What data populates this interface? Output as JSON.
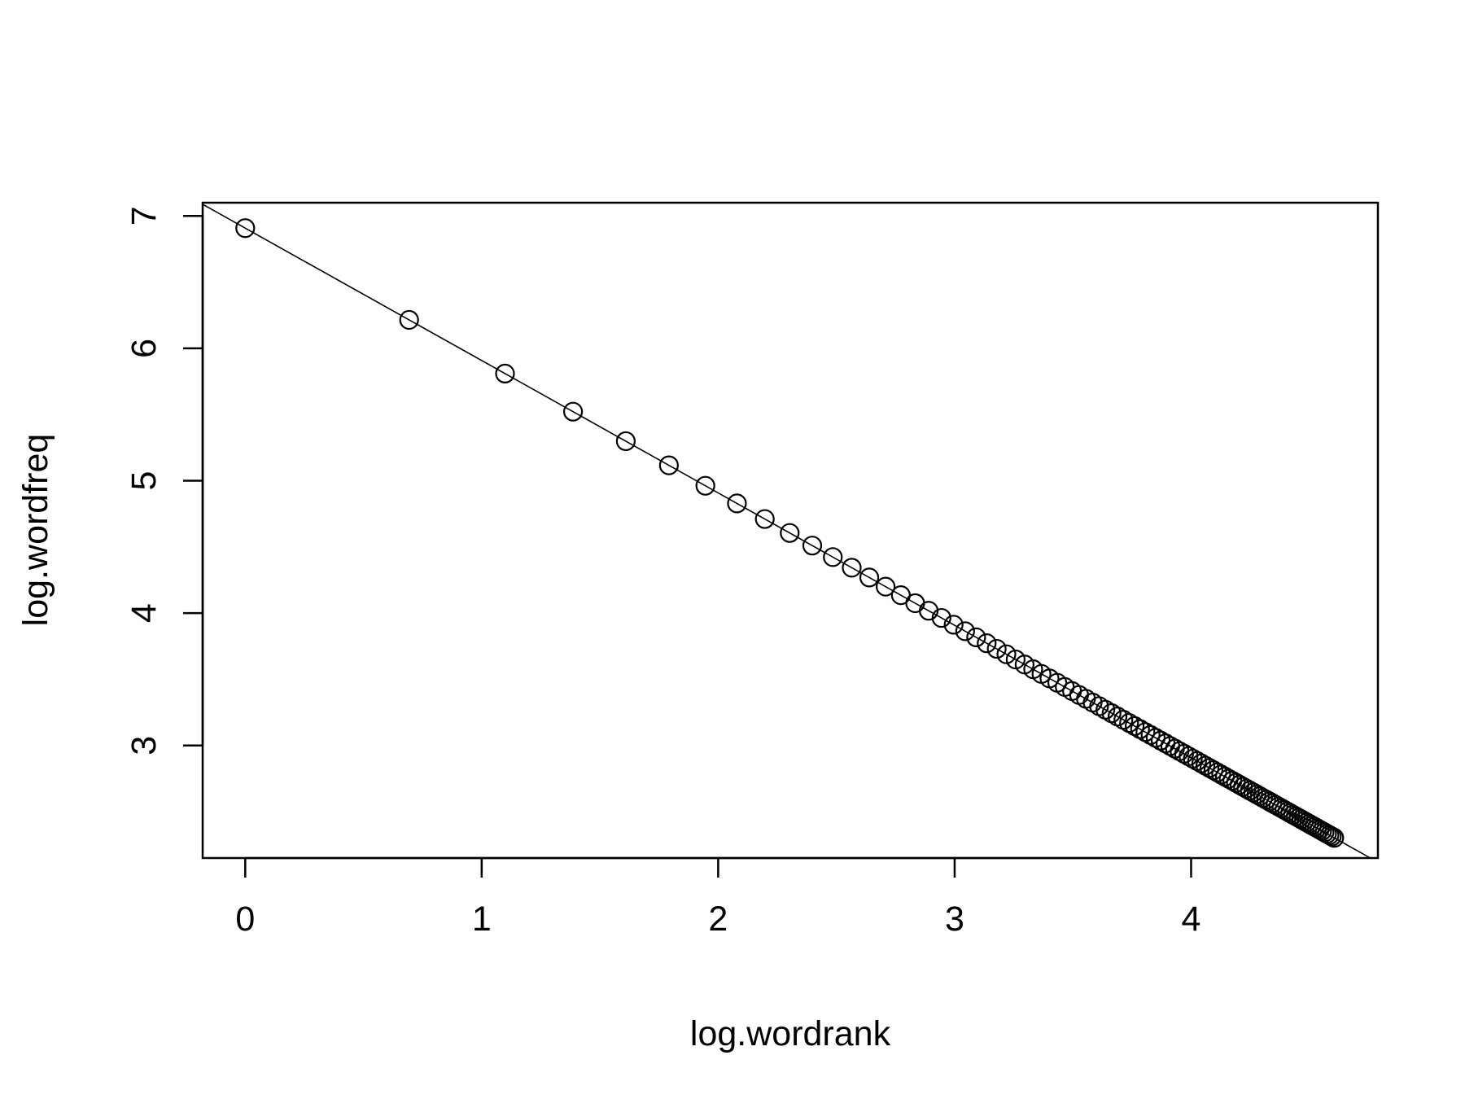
{
  "chart_data": {
    "type": "scatter",
    "title": "",
    "xlabel": "log.wordrank",
    "ylabel": "log.wordfreq",
    "xlim": [
      -0.18,
      4.79
    ],
    "ylim": [
      2.15,
      7.1
    ],
    "x_ticks": [
      0,
      1,
      2,
      3,
      4
    ],
    "y_ticks": [
      3,
      4,
      5,
      6,
      7
    ],
    "grid": false,
    "legend": "none",
    "point_series": {
      "rank_start": 1,
      "rank_end": 100,
      "x_formula": "log(rank)",
      "y_formula": "6.908 - log(rank)"
    },
    "fit_line": {
      "intercept": 6.908,
      "slope": -1.0
    },
    "colors": {
      "points": "#000000",
      "line": "#000000",
      "background": "#ffffff"
    }
  }
}
